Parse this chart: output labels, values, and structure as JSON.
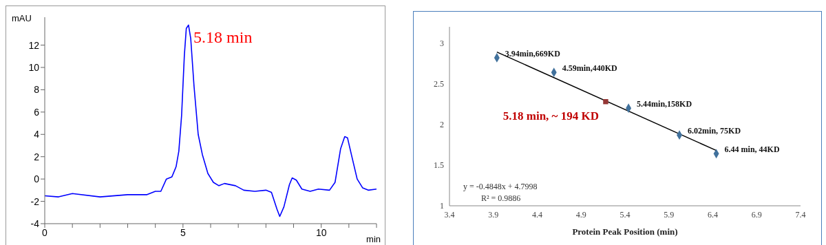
{
  "chart_data": [
    {
      "type": "line",
      "xlabel": "min",
      "ylabel": "mAU",
      "xlim": [
        0,
        12
      ],
      "xticks": [
        0,
        {
          "value": 1,
          "label": null
        },
        {
          "value": 2,
          "label": null
        },
        {
          "value": 3,
          "label": null
        },
        {
          "value": 4,
          "label": null
        },
        5,
        {
          "value": 6,
          "label": null
        },
        {
          "value": 7,
          "label": null
        },
        {
          "value": 8,
          "label": null
        },
        {
          "value": 9,
          "label": null
        },
        10,
        {
          "value": 11,
          "label": null
        },
        {
          "value": 12,
          "label": null
        }
      ],
      "ylim": [
        -4,
        14.5
      ],
      "yticks": [
        -4,
        -2,
        0,
        2,
        4,
        6,
        8,
        10,
        12
      ],
      "annotations": [
        {
          "text": "5.18 min",
          "x": 5.18,
          "y": 13.8
        }
      ],
      "series": [
        {
          "color": "#0000ff",
          "x": [
            0,
            0.5,
            1,
            2,
            3,
            3.7,
            4,
            4.2,
            4.4,
            4.6,
            4.75,
            4.85,
            4.95,
            5.05,
            5.12,
            5.2,
            5.28,
            5.4,
            5.55,
            5.7,
            5.9,
            6.1,
            6.3,
            6.5,
            6.9,
            7.2,
            7.6,
            8,
            8.2,
            8.4,
            8.5,
            8.65,
            8.85,
            8.95,
            9.1,
            9.3,
            9.6,
            9.9,
            10.3,
            10.5,
            10.7,
            10.85,
            10.95,
            11.1,
            11.3,
            11.5,
            11.7,
            12
          ],
          "values": [
            -1.5,
            -1.6,
            -1.3,
            -1.6,
            -1.4,
            -1.4,
            -1.1,
            -1.1,
            0,
            0.2,
            1.1,
            2.5,
            5.7,
            11.1,
            13.5,
            13.8,
            12.6,
            8.3,
            4,
            2.2,
            0.5,
            -0.3,
            -0.6,
            -0.4,
            -0.6,
            -1,
            -1.1,
            -1,
            -1.2,
            -2.7,
            -3.35,
            -2.5,
            -0.5,
            0.1,
            -0.1,
            -0.9,
            -1.1,
            -0.9,
            -1,
            -0.3,
            2.7,
            3.8,
            3.7,
            2.1,
            0,
            -0.8,
            -1,
            -0.9
          ]
        }
      ]
    },
    {
      "type": "scatter",
      "xlabel": "Protein Peak Position (min)",
      "xlim": [
        3.4,
        7.4
      ],
      "xticks": [
        3.4,
        3.9,
        4.4,
        4.9,
        5.4,
        5.9,
        6.4,
        6.9,
        7.4
      ],
      "ylim": [
        1,
        3.2
      ],
      "yticks": [
        1,
        1.5,
        2,
        2.5,
        3
      ],
      "annotations": [
        {
          "text": "3.94min,669KD",
          "x": 3.94,
          "y": 2.82
        },
        {
          "text": "4.59min,440KD",
          "x": 4.59,
          "y": 2.64
        },
        {
          "text": "5.44min,158KD",
          "x": 5.44,
          "y": 2.2
        },
        {
          "text": "6.02min, 75KD",
          "x": 6.02,
          "y": 1.87
        },
        {
          "text": "6.44 min, 44KD",
          "x": 6.44,
          "y": 1.64
        },
        "y = -0.4848x + 4.7998",
        "R² = 0.9886"
      ],
      "series": [
        {
          "type": "line",
          "color": "#000000",
          "marker": "none",
          "x": [
            3.94,
            6.44
          ],
          "values": [
            2.89,
            1.68
          ]
        },
        {
          "type": "scatter",
          "color": "#41719c",
          "marker": "diamond",
          "x": [
            3.94,
            4.59,
            5.44,
            6.02,
            6.44
          ],
          "values": [
            2.82,
            2.64,
            2.2,
            1.87,
            1.64
          ]
        },
        {
          "type": "scatter",
          "name": "5.18 min, ~ 194 KD",
          "color": "#953735",
          "marker": "square",
          "x": [
            5.18
          ],
          "values": [
            2.28
          ]
        }
      ]
    }
  ]
}
